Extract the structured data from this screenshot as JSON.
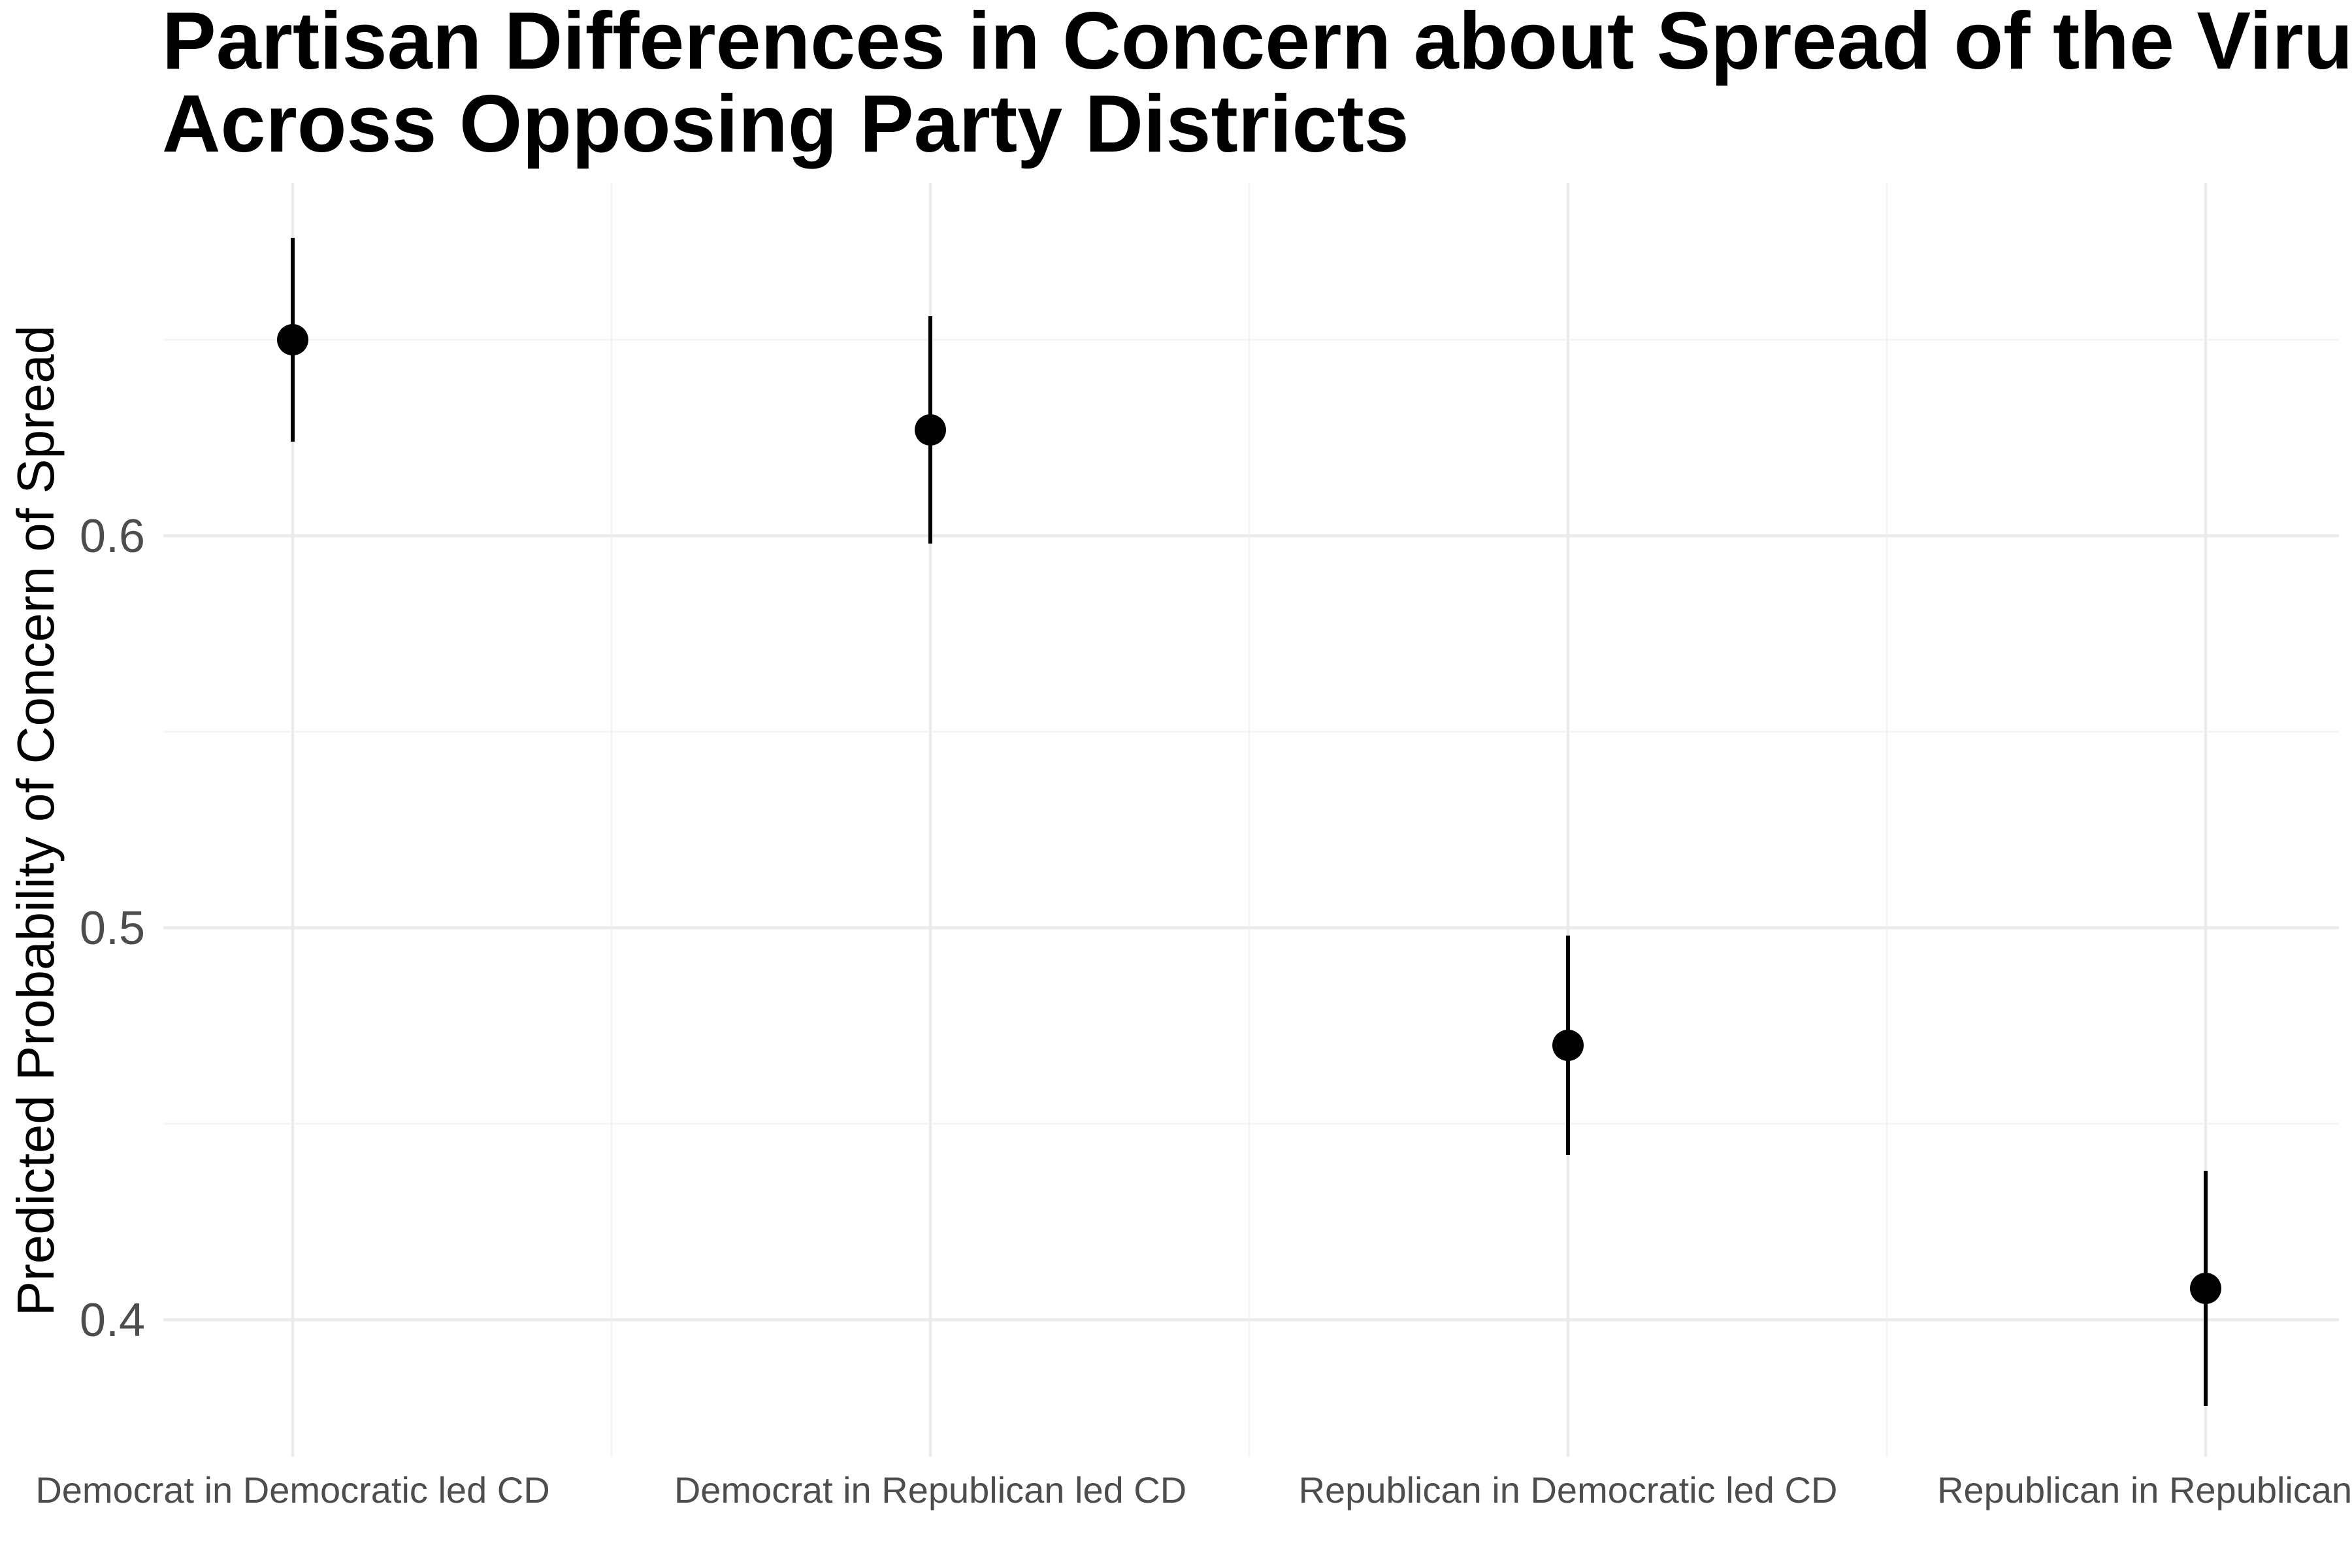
{
  "chart_data": {
    "type": "scatter",
    "title_lines": [
      "Partisan Differences in Concern about Spread of the Virus",
      "Across Opposing Party Districts"
    ],
    "xlabel": "",
    "ylabel": "Predicted Probability of Concern of Spread",
    "categories": [
      "Democrat in Democratic led CD",
      "Democrat in Republican led CD",
      "Republican in Democratic led CD",
      "Republican in Republican led CD"
    ],
    "estimates": [
      0.65,
      0.627,
      0.47,
      0.408
    ],
    "ci_lower": [
      0.624,
      0.598,
      0.442,
      0.378
    ],
    "ci_upper": [
      0.676,
      0.656,
      0.498,
      0.438
    ],
    "ylim": [
      0.365,
      0.69
    ],
    "yticks": [
      0.4,
      0.5,
      0.6
    ],
    "ytick_labels": [
      "0.4",
      "0.5",
      "0.6"
    ],
    "grid": true,
    "legend": "none"
  }
}
